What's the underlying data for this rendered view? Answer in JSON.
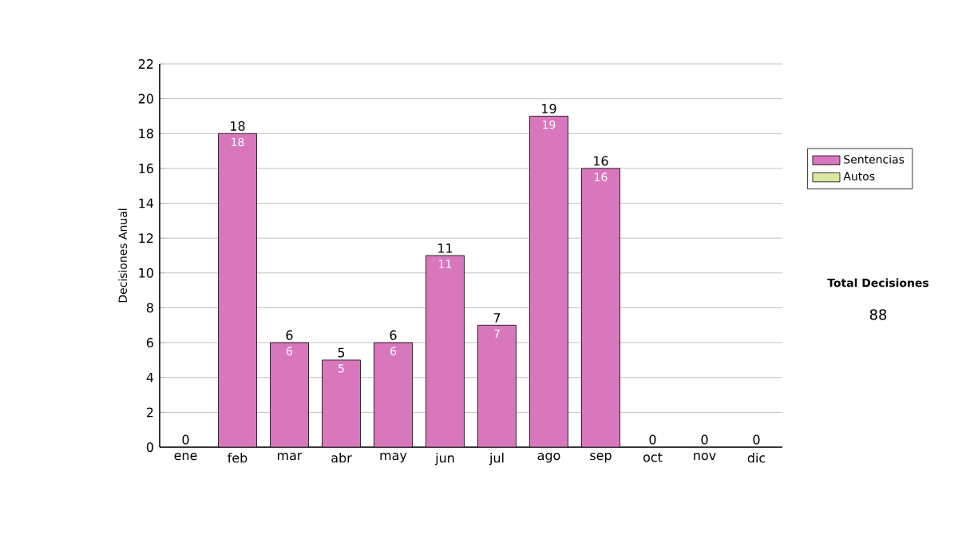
{
  "chart_data": {
    "type": "bar",
    "stacked": true,
    "ylabel": "Decisiones Anual",
    "categories": [
      "ene",
      "feb",
      "mar",
      "abr",
      "may",
      "jun",
      "jul",
      "ago",
      "sep",
      "oct",
      "nov",
      "dic"
    ],
    "series": [
      {
        "name": "Sentencias",
        "color": "#d977bd",
        "values": [
          0,
          18,
          6,
          5,
          6,
          11,
          7,
          19,
          16,
          0,
          0,
          0
        ],
        "value_labels": [
          null,
          "18",
          "6",
          "5",
          "6",
          "11",
          "7",
          "19",
          "16",
          null,
          null,
          null
        ]
      },
      {
        "name": "Autos",
        "color": "#d8e8a0",
        "values": [
          0,
          0,
          0,
          0,
          0,
          0,
          0,
          0,
          0,
          0,
          0,
          0
        ]
      }
    ],
    "totals": [
      "0",
      "18",
      "6",
      "5",
      "6",
      "11",
      "7",
      "19",
      "16",
      "0",
      "0",
      "0"
    ],
    "ylim": [
      0,
      22
    ],
    "yticks": [
      0,
      2,
      4,
      6,
      8,
      10,
      12,
      14,
      16,
      18,
      20,
      22
    ],
    "grid": "y",
    "legend": "right",
    "annotations": [
      "Total Decisiones",
      "88"
    ]
  }
}
